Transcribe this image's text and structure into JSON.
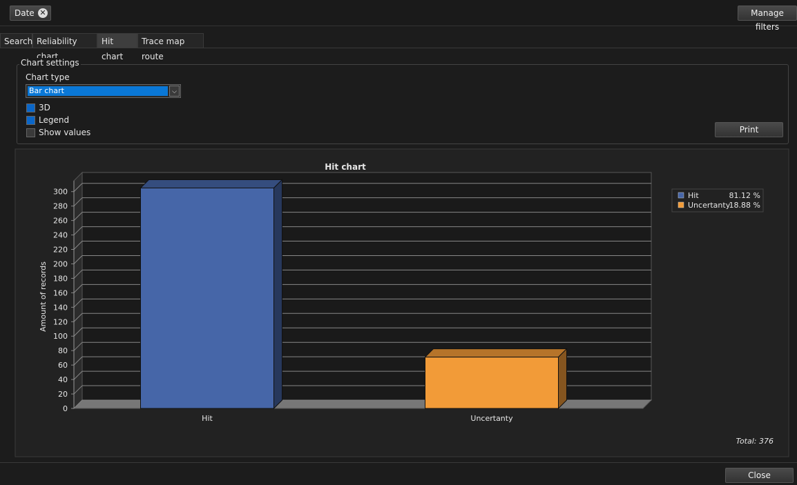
{
  "filter_chip": "Date",
  "manage_filters": "Manage filters",
  "tabs": [
    "Search",
    "Reliability chart",
    "Hit chart",
    "Trace map route"
  ],
  "active_tab": 2,
  "settings": {
    "legend": "Chart settings",
    "chart_type_label": "Chart type",
    "chart_type": "Bar chart",
    "options": [
      {
        "label": "3D",
        "checked": true
      },
      {
        "label": "Legend",
        "checked": true
      },
      {
        "label": "Show values",
        "checked": false
      }
    ],
    "print": "Print"
  },
  "chart_data": {
    "type": "bar",
    "three_d": true,
    "title": "Hit chart",
    "y_label": "Amount of records",
    "categories": [
      "Hit",
      "Uncertanty"
    ],
    "values": [
      305,
      71
    ],
    "colors": [
      "#4666a8",
      "#f29b38"
    ],
    "ylim": [
      0,
      315
    ],
    "yticks": [
      0,
      20,
      40,
      60,
      80,
      100,
      120,
      140,
      160,
      180,
      200,
      220,
      240,
      260,
      280,
      300
    ],
    "grid": true,
    "legend_position": "right",
    "shares": [
      "81.12 %",
      "18.88 %"
    ],
    "total": "Total: 376"
  },
  "close": "Close"
}
